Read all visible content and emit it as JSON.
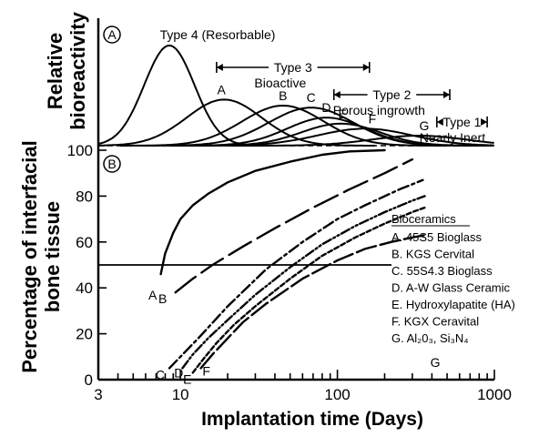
{
  "chart_data": {
    "type": "line",
    "x_scale": "log",
    "x_range_days": [
      3,
      1000
    ],
    "xlabel": "Implantation time (Days)",
    "x_ticks": [
      3,
      10,
      100,
      1000
    ],
    "legend_placement": "bottom-right",
    "panel_a": {
      "label": "A",
      "ylabel_line1": "Relative",
      "ylabel_line2": "bioreactivity",
      "type_ranges": [
        {
          "title": "Type 4 (Resorbable)",
          "subtitle": "",
          "start": null,
          "end": null
        },
        {
          "title": "Type 3",
          "subtitle": "Bioactive",
          "start": 17,
          "end": 160
        },
        {
          "title": "Type 2",
          "subtitle": "Porous ingrowth",
          "start": 95,
          "end": 520
        },
        {
          "title": "Type 1",
          "subtitle": "Nearly Inert",
          "start": 430,
          "end": 900
        }
      ],
      "peaks": [
        {
          "name": "",
          "center_days": 8.5,
          "height": 1.0,
          "width": 0.16
        },
        {
          "name": "A",
          "center_days": 19,
          "height": 0.46,
          "width": 0.24
        },
        {
          "name": "B",
          "center_days": 45,
          "height": 0.4,
          "width": 0.26
        },
        {
          "name": "C",
          "center_days": 68,
          "height": 0.38,
          "width": 0.27
        },
        {
          "name": "D",
          "center_days": 85,
          "height": 0.28,
          "width": 0.25
        },
        {
          "name": "E",
          "center_days": 105,
          "height": 0.22,
          "width": 0.25
        },
        {
          "name": "F",
          "center_days": 150,
          "height": 0.17,
          "width": 0.3
        },
        {
          "name": "G",
          "center_days": 330,
          "height": 0.1,
          "width": 0.3
        }
      ]
    },
    "panel_b": {
      "label": "B",
      "ylabel_line1": "Percentage of interfacial",
      "ylabel_line2": "bone tissue",
      "ylim": [
        0,
        100
      ],
      "y_ticks": [
        0,
        20,
        40,
        60,
        80,
        100
      ],
      "reference_level": 50,
      "legend_title": "Bioceramics",
      "series": [
        {
          "name": "A",
          "label": "A. 45S5 Bioglass",
          "dash": "",
          "x": [
            7.5,
            8,
            9,
            10,
            12,
            15,
            20,
            30,
            50,
            80,
            120,
            200
          ],
          "y": [
            46,
            55,
            64,
            70,
            76,
            81,
            86,
            91,
            95,
            98,
            99.5,
            100
          ]
        },
        {
          "name": "B",
          "label": "B. KGS Cervital",
          "dash": "28,8",
          "x": [
            9.3,
            12,
            16,
            25,
            40,
            70,
            120,
            200,
            300
          ],
          "y": [
            38,
            44,
            50,
            58,
            66,
            75,
            83,
            90,
            96
          ]
        },
        {
          "name": "C",
          "label": "C. 55S4.3 Bioglass",
          "dash": "12,4,3,4",
          "x": [
            8.5,
            10,
            13,
            20,
            35,
            60,
            100,
            150,
            250,
            350
          ],
          "y": [
            5,
            10,
            18,
            32,
            48,
            60,
            70,
            76,
            83,
            87
          ]
        },
        {
          "name": "D",
          "label": "D. A-W Glass Ceramic",
          "dash": "10,3,2,3,2,3",
          "x": [
            10.3,
            12,
            15,
            20,
            30,
            50,
            80,
            130,
            200,
            300,
            360
          ],
          "y": [
            5,
            11,
            18,
            26,
            37,
            49,
            59,
            67,
            73,
            78,
            80
          ]
        },
        {
          "name": "E",
          "label": "E. Hydroxylapatite (HA)",
          "dash": "5,3",
          "x": [
            12,
            14,
            17,
            22,
            30,
            50,
            80,
            130,
            200,
            300,
            360
          ],
          "y": [
            3,
            9,
            16,
            24,
            32,
            44,
            54,
            62,
            68,
            73,
            75
          ]
        },
        {
          "name": "F",
          "label": "F. KGX Ceravital",
          "dash": "22,5",
          "x": [
            13.5,
            16,
            20,
            25,
            35,
            60,
            100,
            150,
            220,
            300,
            360
          ],
          "y": [
            5,
            11,
            18,
            25,
            33,
            44,
            52,
            57,
            60,
            62,
            63
          ]
        },
        {
          "name": "G",
          "label": "G. Al₂0₃, Si₃N₄",
          "dash": "",
          "x": [],
          "y": []
        }
      ]
    }
  }
}
